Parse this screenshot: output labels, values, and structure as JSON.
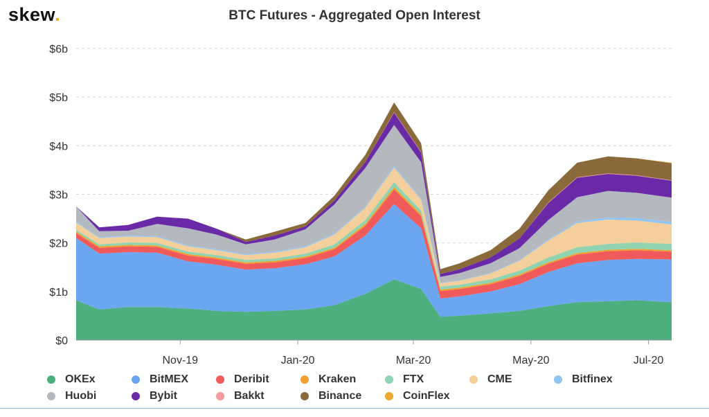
{
  "brand": {
    "logo_text": "skew",
    "logo_dot": "."
  },
  "chart_data": {
    "type": "area",
    "stacked": true,
    "title": "BTC Futures - Aggregated Open Interest",
    "xlabel": "",
    "ylabel": "",
    "y_tick_labels": [
      "$0",
      "$1b",
      "$2b",
      "$3b",
      "$4b",
      "$5b",
      "$6b"
    ],
    "y_ticks": [
      0,
      1,
      2,
      3,
      4,
      5,
      6
    ],
    "ylim": [
      0,
      6
    ],
    "y_unit": "billion USD",
    "x_tick_labels": [
      "Nov-19",
      "Jan-20",
      "Mar-20",
      "May-20",
      "Jul-20"
    ],
    "x_tick_dates": [
      "2019-11-01",
      "2020-01-01",
      "2020-03-01",
      "2020-05-01",
      "2020-07-01"
    ],
    "x_range": [
      "2019-09-08",
      "2020-07-13"
    ],
    "grid": "horizontal dashed",
    "legend_position": "bottom",
    "x": [
      "2019-09-08",
      "2019-09-20",
      "2019-10-05",
      "2019-10-20",
      "2019-11-05",
      "2019-11-20",
      "2019-12-05",
      "2019-12-20",
      "2020-01-05",
      "2020-01-20",
      "2020-02-05",
      "2020-02-20",
      "2020-03-05",
      "2020-03-15",
      "2020-03-25",
      "2020-04-10",
      "2020-04-25",
      "2020-05-10",
      "2020-05-25",
      "2020-06-10",
      "2020-06-25",
      "2020-07-13"
    ],
    "series": [
      {
        "name": "OKEx",
        "color": "#4caf7d",
        "values": [
          0.82,
          0.63,
          0.68,
          0.68,
          0.65,
          0.6,
          0.58,
          0.6,
          0.63,
          0.72,
          0.95,
          1.25,
          1.05,
          0.48,
          0.5,
          0.55,
          0.6,
          0.7,
          0.78,
          0.8,
          0.82,
          0.78
        ]
      },
      {
        "name": "BitMEX",
        "color": "#6ca6f0",
        "values": [
          1.28,
          1.15,
          1.13,
          1.12,
          0.97,
          0.95,
          0.87,
          0.88,
          0.93,
          1.0,
          1.2,
          1.55,
          1.25,
          0.38,
          0.4,
          0.45,
          0.55,
          0.7,
          0.8,
          0.85,
          0.85,
          0.88
        ]
      },
      {
        "name": "Deribit",
        "color": "#f05a5a",
        "values": [
          0.1,
          0.12,
          0.12,
          0.12,
          0.12,
          0.12,
          0.12,
          0.12,
          0.13,
          0.15,
          0.2,
          0.3,
          0.25,
          0.15,
          0.15,
          0.15,
          0.17,
          0.17,
          0.18,
          0.18,
          0.18,
          0.16
        ]
      },
      {
        "name": "Kraken",
        "color": "#f0a030",
        "values": [
          0.03,
          0.03,
          0.03,
          0.03,
          0.03,
          0.03,
          0.03,
          0.03,
          0.03,
          0.03,
          0.04,
          0.05,
          0.04,
          0.03,
          0.03,
          0.03,
          0.03,
          0.03,
          0.03,
          0.03,
          0.03,
          0.03
        ]
      },
      {
        "name": "FTX",
        "color": "#8fd3b0",
        "values": [
          0.04,
          0.04,
          0.05,
          0.05,
          0.05,
          0.05,
          0.05,
          0.05,
          0.06,
          0.07,
          0.08,
          0.1,
          0.08,
          0.06,
          0.06,
          0.07,
          0.08,
          0.1,
          0.12,
          0.12,
          0.13,
          0.13
        ]
      },
      {
        "name": "CME",
        "color": "#f5cf9b",
        "values": [
          0.15,
          0.13,
          0.12,
          0.12,
          0.11,
          0.1,
          0.1,
          0.12,
          0.13,
          0.2,
          0.25,
          0.3,
          0.22,
          0.07,
          0.08,
          0.12,
          0.2,
          0.35,
          0.5,
          0.5,
          0.45,
          0.4
        ]
      },
      {
        "name": "Bitfinex",
        "color": "#8ec5f5",
        "values": [
          0.02,
          0.02,
          0.02,
          0.02,
          0.02,
          0.02,
          0.02,
          0.02,
          0.02,
          0.02,
          0.02,
          0.03,
          0.02,
          0.01,
          0.01,
          0.01,
          0.01,
          0.02,
          0.03,
          0.04,
          0.05,
          0.05
        ]
      },
      {
        "name": "Huobi",
        "color": "#b3b9be",
        "values": [
          0.31,
          0.12,
          0.1,
          0.25,
          0.35,
          0.3,
          0.2,
          0.25,
          0.35,
          0.6,
          0.8,
          0.85,
          0.75,
          0.12,
          0.15,
          0.2,
          0.25,
          0.4,
          0.5,
          0.55,
          0.52,
          0.5
        ]
      },
      {
        "name": "Bybit",
        "color": "#6a2aa8",
        "values": [
          0.0,
          0.08,
          0.12,
          0.15,
          0.2,
          0.12,
          0.05,
          0.08,
          0.06,
          0.08,
          0.12,
          0.25,
          0.2,
          0.06,
          0.08,
          0.12,
          0.2,
          0.35,
          0.4,
          0.35,
          0.35,
          0.35
        ]
      },
      {
        "name": "Bakkt",
        "color": "#f59a9a",
        "values": [
          0.0,
          0.0,
          0.0,
          0.0,
          0.0,
          0.0,
          0.0,
          0.0,
          0.0,
          0.0,
          0.0,
          0.01,
          0.01,
          0.0,
          0.0,
          0.0,
          0.0,
          0.01,
          0.01,
          0.01,
          0.01,
          0.01
        ]
      },
      {
        "name": "Binance",
        "color": "#8a6a3a",
        "values": [
          0.0,
          0.0,
          0.0,
          0.0,
          0.0,
          0.0,
          0.05,
          0.08,
          0.07,
          0.1,
          0.15,
          0.2,
          0.18,
          0.1,
          0.12,
          0.15,
          0.2,
          0.25,
          0.3,
          0.35,
          0.35,
          0.35
        ]
      },
      {
        "name": "CoinFlex",
        "color": "#f0a830",
        "values": [
          0.0,
          0.0,
          0.0,
          0.0,
          0.0,
          0.0,
          0.0,
          0.0,
          0.0,
          0.0,
          0.0,
          0.0,
          0.0,
          0.0,
          0.0,
          0.0,
          0.0,
          0.0,
          0.0,
          0.0,
          0.0,
          0.01
        ]
      }
    ]
  }
}
